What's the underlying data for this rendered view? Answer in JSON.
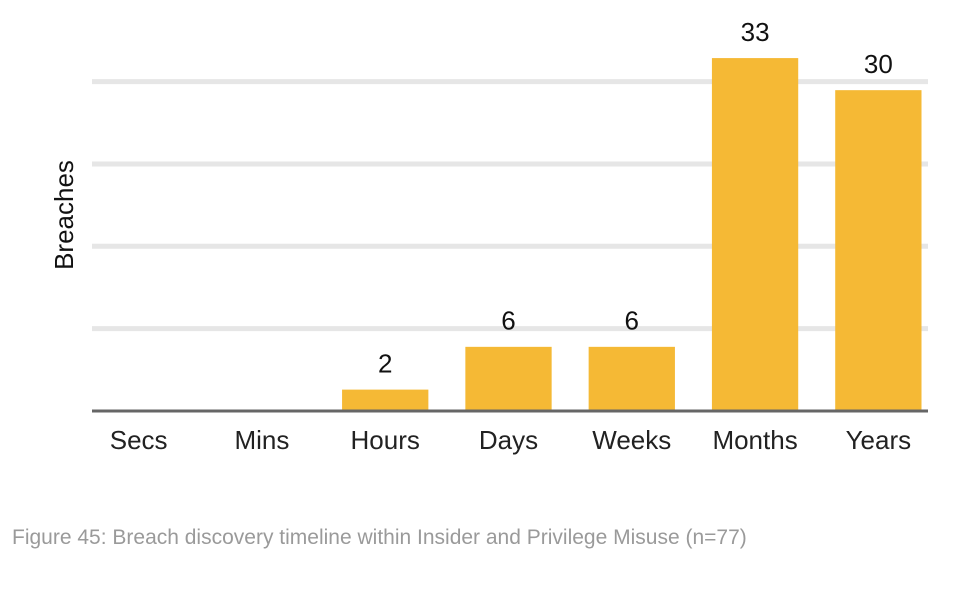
{
  "chart_data": {
    "type": "bar",
    "y_label": "Breaches",
    "categories": [
      "Secs",
      "Mins",
      "Hours",
      "Days",
      "Weeks",
      "Months",
      "Years"
    ],
    "values": [
      0,
      0,
      2,
      6,
      6,
      33,
      30
    ],
    "color": "#f5b935",
    "ylim": [
      0,
      36
    ],
    "yticks": [
      0,
      7.7,
      15.4,
      23.1,
      30.8
    ],
    "grid": true,
    "caption": "Figure 45: Breach discovery timeline within Insider and Privilege Misuse (n=77)"
  }
}
